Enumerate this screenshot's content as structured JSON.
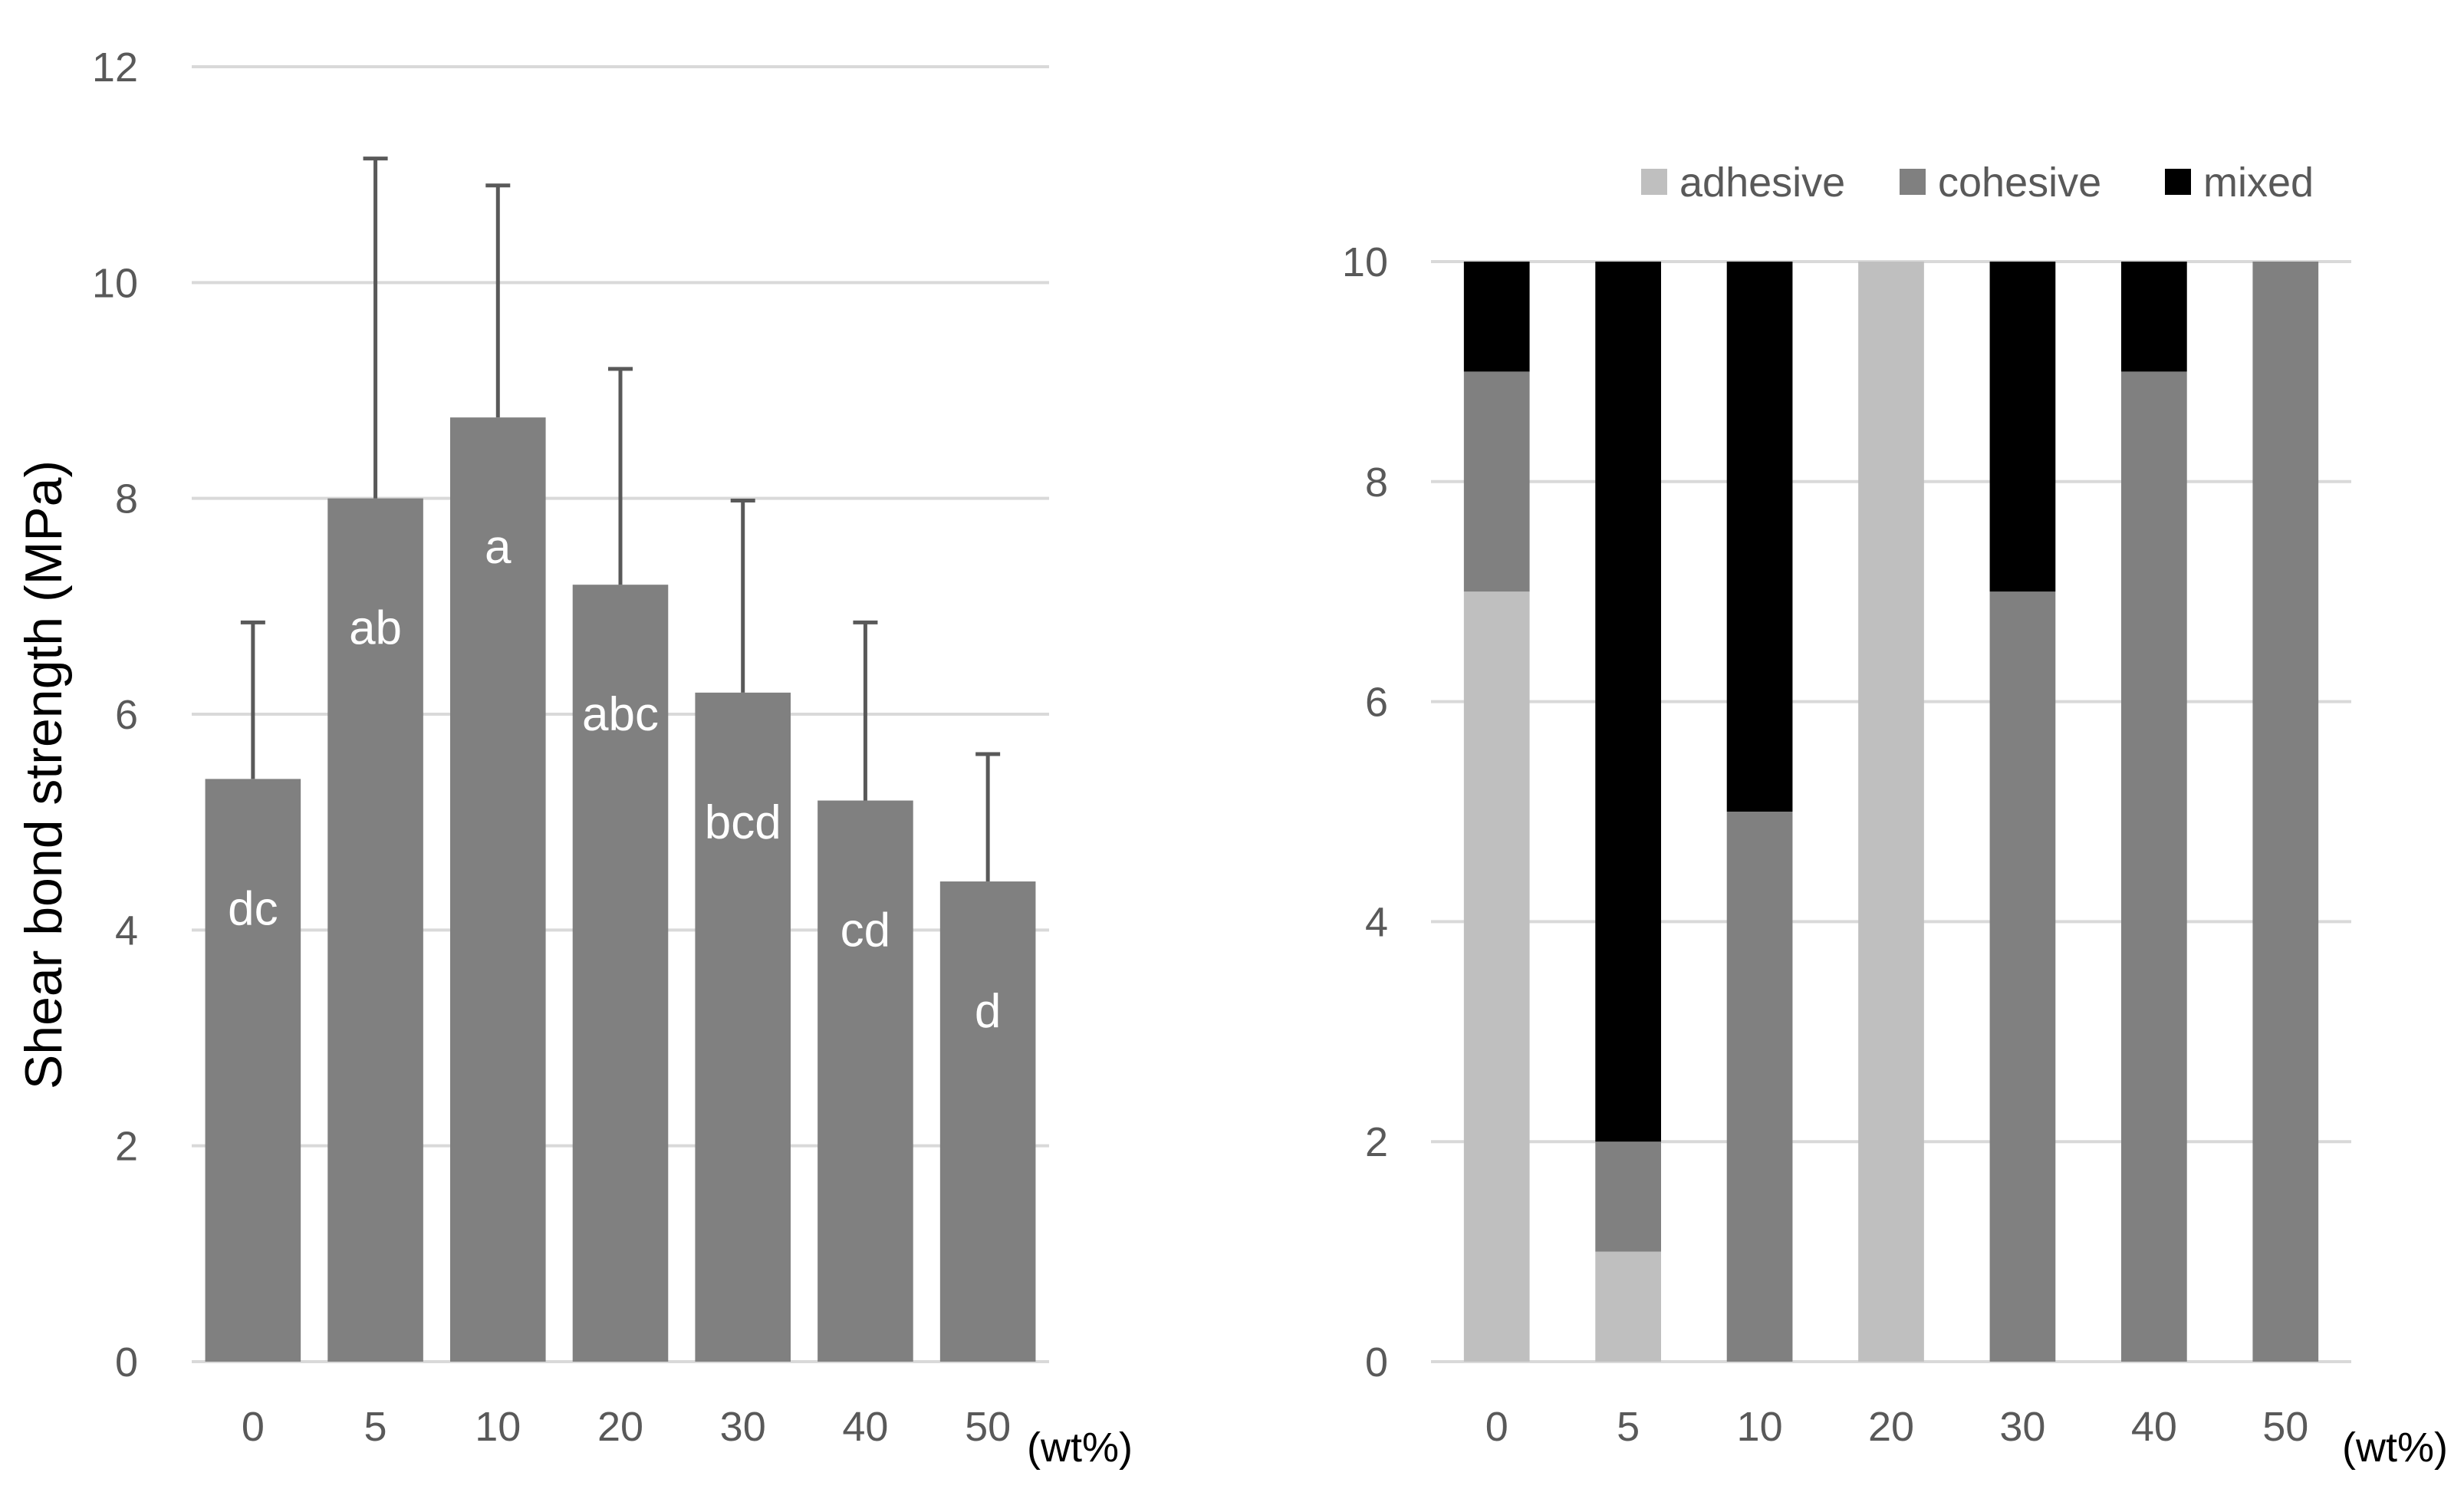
{
  "chart_data": [
    {
      "type": "bar",
      "title": "",
      "xlabel": "(wt%)",
      "ylabel": "Shear bond strength (MPa)",
      "ylim": [
        0,
        12
      ],
      "yticks": [
        "0",
        "2",
        "4",
        "6",
        "8",
        "10",
        "12"
      ],
      "categories": [
        "0",
        "5",
        "10",
        "20",
        "30",
        "40",
        "50"
      ],
      "values": [
        5.4,
        8.0,
        8.75,
        7.2,
        6.2,
        5.2,
        4.45
      ],
      "error_plus": [
        1.45,
        3.15,
        2.15,
        2.0,
        1.78,
        1.65,
        1.18
      ],
      "bar_labels": [
        "dc",
        "ab",
        "a",
        "abc",
        "bcd",
        "cd",
        "d"
      ],
      "bar_color": "#808080",
      "grid": true
    },
    {
      "type": "bar",
      "stacked": true,
      "title": "",
      "xlabel": "(wt%)",
      "ylabel": "",
      "ylim": [
        0,
        10
      ],
      "yticks": [
        "0",
        "2",
        "4",
        "6",
        "8",
        "10"
      ],
      "categories": [
        "0",
        "5",
        "10",
        "20",
        "30",
        "40",
        "50"
      ],
      "series": [
        {
          "name": "adhesive",
          "color": "#bfbfbf",
          "values": [
            7,
            1,
            0,
            10,
            0,
            0,
            0
          ]
        },
        {
          "name": "cohesive",
          "color": "#808080",
          "values": [
            2,
            1,
            5,
            0,
            7,
            9,
            10
          ]
        },
        {
          "name": "mixed",
          "color": "#000000",
          "values": [
            1,
            8,
            5,
            0,
            3,
            1,
            0
          ]
        }
      ],
      "legend_position": "top-right",
      "grid": true
    }
  ]
}
